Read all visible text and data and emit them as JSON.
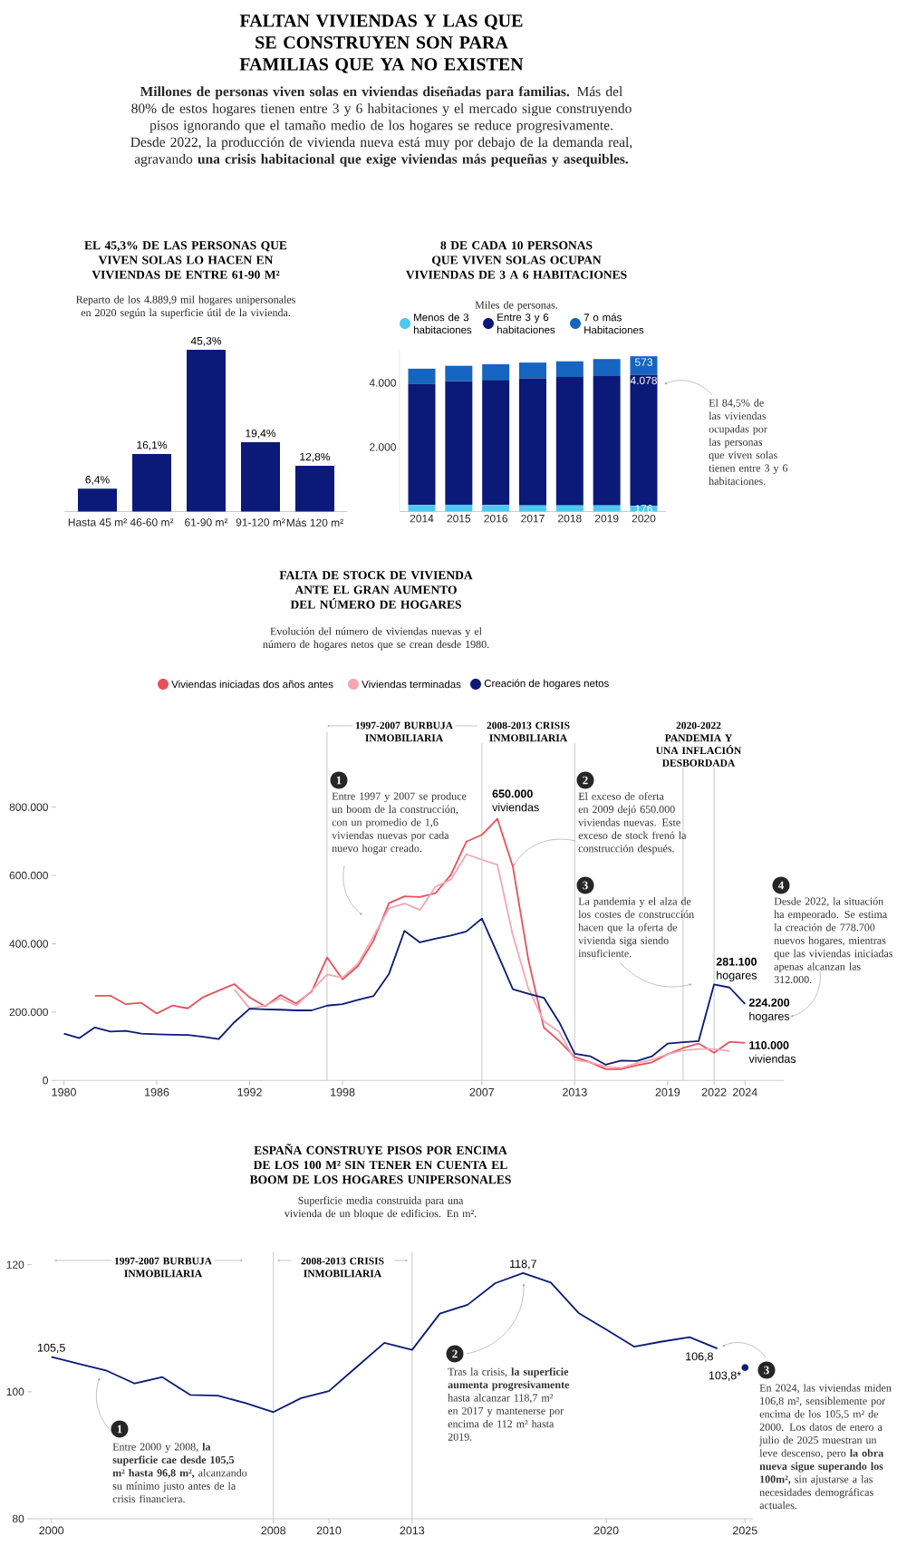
{
  "chart_data": [
    {
      "type": "other",
      "title": "FALTAN VIVIENDAS Y LAS QUE SE CONSTRUYEN SON PARA FAMILIAS QUE YA NO EXISTEN",
      "subtitle": "**Millones de personas viven solas en viviendas diseñadas para familias.** Más del 80% de estos hogares tienen entre 3 y 6 habitaciones y el mercado sigue construyendo pisos ignorando que el tamaño medio de los hogares se reduce progresivamente. Desde 2022, la producción de vivienda nueva está muy por debajo de la demanda real, agravando **una crisis habitacional que exige viviendas más pequeñas y asequibles.**"
    },
    {
      "type": "bar",
      "title": "EL 45,3% DE LAS PERSONAS QUE VIVEN SOLAS LO HACEN EN VIVIENDAS DE ENTRE 61-90 M²",
      "subtitle": "Reparto de los 4.889,9 mil hogares unipersonales en 2020 según la superficie útil de la vivienda.",
      "categories": [
        "Hasta 45 m²",
        "46-60 m²",
        "61-90 m²",
        "91-120 m²",
        "Más 120 m²"
      ],
      "values": [
        6.4,
        16.1,
        45.3,
        19.4,
        12.8
      ],
      "value_labels": [
        "6,4%",
        "16,1%",
        "45,3%",
        "19,4%",
        "12,8%"
      ],
      "color": "#0b1a78"
    },
    {
      "type": "bar",
      "stacked": true,
      "title": "8 DE CADA 10 PERSONAS QUE VIVEN SOLAS OCUPAN VIVIENDAS DE 3 A 6 HABITACIONES",
      "subtitle": "Miles de personas.",
      "categories": [
        "2014",
        "2015",
        "2016",
        "2017",
        "2018",
        "2019",
        "2020"
      ],
      "series": [
        {
          "name": "Menos de 3 habitaciones",
          "color": "#4dc8f0",
          "values": [
            200,
            210,
            200,
            190,
            190,
            190,
            176
          ],
          "value_labels": [
            null,
            null,
            null,
            null,
            null,
            null,
            "176"
          ]
        },
        {
          "name": "Entre 3 y 6 habitaciones",
          "color": "#0b1a78",
          "values": [
            3770,
            3840,
            3890,
            3950,
            3990,
            4020,
            4078
          ],
          "value_labels": [
            null,
            null,
            null,
            null,
            null,
            null,
            "4.078"
          ]
        },
        {
          "name": "7 o más Habitaciones",
          "color": "#1565c0",
          "values": [
            470,
            480,
            490,
            490,
            490,
            530,
            573
          ],
          "value_labels": [
            null,
            null,
            null,
            null,
            null,
            null,
            "573"
          ]
        }
      ],
      "ylim": [
        0,
        5000
      ],
      "yticks": [
        {
          "value": 2000,
          "label": "2.000"
        },
        {
          "value": 4000,
          "label": "4.000"
        }
      ],
      "legend": "top left",
      "annotations": [
        "El 84,5% de las viviendas ocupadas por las personas que viven solas tienen entre 3 y 6 habitaciones."
      ]
    },
    {
      "type": "line",
      "title": "FALTA DE STOCK DE VIVIENDA ANTE EL GRAN AUMENTO DEL NÚMERO DE HOGARES",
      "subtitle": "Evolución del número de viviendas nuevas y el número de hogares netos que se crean desde 1980.",
      "series": [
        {
          "name": "Viviendas iniciadas dos años antes",
          "color": "#e8505b",
          "x": [
            1982,
            1983,
            1984,
            1985,
            1986,
            1987,
            1988,
            1989,
            1990,
            1991,
            1992,
            1993,
            1994,
            1995,
            1996,
            1997,
            1998,
            1999,
            2000,
            2001,
            2002,
            2003,
            2004,
            2005,
            2006,
            2007,
            2008,
            2009,
            2010,
            2011,
            2012,
            2013,
            2014,
            2015,
            2016,
            2017,
            2018,
            2019,
            2020,
            2021,
            2022,
            2023,
            2024
          ],
          "values": [
            248000,
            248000,
            223000,
            227000,
            196000,
            219000,
            211000,
            244000,
            263000,
            282000,
            243000,
            217000,
            250000,
            225000,
            260000,
            360000,
            296000,
            335000,
            409000,
            519000,
            539000,
            537000,
            548000,
            602000,
            699000,
            719000,
            766000,
            626000,
            354000,
            155000,
            115000,
            69000,
            53000,
            33000,
            33000,
            44000,
            53000,
            77000,
            95000,
            108000,
            81000,
            113000,
            110000
          ]
        },
        {
          "name": "Viviendas terminadas",
          "color": "#f4a6b4",
          "x": [
            1991,
            1992,
            1993,
            1994,
            1995,
            1996,
            1997,
            1998,
            1999,
            2000,
            2001,
            2002,
            2003,
            2004,
            2005,
            2006,
            2007,
            2008,
            2009,
            2010,
            2011,
            2012,
            2013,
            2014,
            2015,
            2016,
            2017,
            2018,
            2019,
            2020,
            2021,
            2022,
            2023
          ],
          "values": [
            267000,
            210000,
            219000,
            241000,
            219000,
            263000,
            310000,
            301000,
            342000,
            422000,
            504000,
            518000,
            499000,
            567000,
            588000,
            662000,
            646000,
            631000,
            425000,
            270000,
            173000,
            142000,
            60000,
            53000,
            40000,
            37000,
            50000,
            61000,
            77000,
            88000,
            92000,
            92000,
            86000
          ]
        },
        {
          "name": "Creación de hogares netos",
          "color": "#0b1a78",
          "x": [
            1980,
            1981,
            1982,
            1983,
            1984,
            1985,
            1986,
            1987,
            1988,
            1989,
            1990,
            1991,
            1992,
            1993,
            1994,
            1995,
            1996,
            1997,
            1998,
            1999,
            2000,
            2001,
            2002,
            2003,
            2004,
            2005,
            2006,
            2007,
            2008,
            2009,
            2010,
            2011,
            2012,
            2013,
            2014,
            2015,
            2016,
            2017,
            2018,
            2019,
            2020,
            2021,
            2022,
            2023,
            2024
          ],
          "values": [
            137000,
            124000,
            155000,
            143000,
            145000,
            137000,
            135000,
            134000,
            133000,
            128000,
            121000,
            170000,
            210000,
            208000,
            207000,
            205000,
            205000,
            219000,
            223000,
            236000,
            247000,
            312000,
            438000,
            404000,
            415000,
            424000,
            436000,
            474000,
            372000,
            267000,
            254000,
            242000,
            170000,
            78000,
            71000,
            46000,
            58000,
            57000,
            71000,
            108000,
            112000,
            115000,
            281100,
            272000,
            224200
          ]
        }
      ],
      "xlim": [
        1979.5,
        2026.5
      ],
      "xticks": [
        1980,
        1986,
        1992,
        1998,
        2007,
        2013,
        2019,
        2022,
        2024
      ],
      "ylim": [
        0,
        1020000
      ],
      "yticks": [
        0,
        {
          "value": 200000,
          "label": "200.000"
        },
        {
          "value": 400000,
          "label": "400.000"
        },
        {
          "value": 600000,
          "label": "600.000"
        },
        {
          "value": 800000,
          "label": "800.000"
        }
      ],
      "legend": "top",
      "ref_lines": [
        {
          "axis": "x",
          "value": 1997
        },
        {
          "axis": "x",
          "value": 2007
        },
        {
          "axis": "x",
          "value": 2013
        },
        {
          "axis": "x",
          "value": 2020
        },
        {
          "axis": "x",
          "value": 2022
        }
      ],
      "annotations": [
        "1",
        "Entre 1997 y 2007 se produce un boom de la construcción, con un promedio de 1,6 viviendas nuevas por cada nuevo hogar creado.",
        "2",
        {
          "text": "El exceso de oferta en 2009 dejó 650.000 viviendas nuevas. Este exceso de stock frenó la construcción después.",
          "x": 2009,
          "y": 626000
        },
        "3",
        "La pandemia y el alza de los costes de construcción hacen que la oferta de vivienda siga siendo insuficiente.",
        "4",
        "Desde 2022, la situación ha empeorado. Se estima la creación de 778.700 nuevos hogares, mientras que las viviendas iniciadas apenas alcanzan las 312.000.",
        {
          "text": "**650.000** viviendas",
          "x": 2008,
          "y": 766000
        },
        {
          "text": "**281.100** hogares",
          "x": 2022,
          "y": 281100
        },
        {
          "text": "**224.200** hogares",
          "x": 2024,
          "y": 224200
        },
        {
          "text": "**110.000** viviendas",
          "x": 2024,
          "y": 110000
        },
        "1997-2007 BURBUJA INMOBILIARIA",
        "2008-2013 CRISIS INMOBILIARIA",
        "2020-2022 PANDEMIA Y UNA INFLACIÓN DESBORDADA"
      ]
    },
    {
      "type": "line",
      "title": "ESPAÑA CONSTRUYE PISOS POR ENCIMA DE LOS 100 M² SIN TENER EN CUENTA EL BOOM DE LOS HOGARES UNIPERSONALES",
      "subtitle": "Superficie media construida para una vivienda de un bloque de edificios. En m².",
      "series": [
        {
          "color": "#0b1a78",
          "x": [
            2000,
            2001,
            2002,
            2003,
            2004,
            2005,
            2006,
            2007,
            2008,
            2009,
            2010,
            2011,
            2012,
            2013,
            2014,
            2015,
            2016,
            2017,
            2018,
            2019,
            2020,
            2021,
            2022,
            2023,
            2024
          ],
          "values": [
            105.5,
            104.4,
            103.3,
            101.3,
            102.3,
            99.5,
            99.4,
            98.2,
            96.8,
            99.0,
            100.1,
            103.9,
            107.7,
            106.6,
            112.3,
            113.7,
            117.1,
            118.7,
            117.2,
            112.4,
            109.8,
            107.1,
            107.9,
            108.6,
            106.8
          ],
          "value_labels": [
            "105,5",
            null,
            null,
            null,
            null,
            null,
            null,
            null,
            null,
            null,
            null,
            null,
            null,
            null,
            null,
            null,
            null,
            "118,7",
            null,
            null,
            null,
            null,
            null,
            null,
            "106,8"
          ]
        },
        {
          "type": "scatter",
          "color": "#0b1a78",
          "x": [
            2025
          ],
          "values": [
            103.8
          ],
          "value_labels": [
            "103,8*"
          ]
        }
      ],
      "xlim": [
        1999.3,
        2025.3
      ],
      "xticks": [
        2000,
        2008,
        2010,
        2013,
        2020,
        2025
      ],
      "ylim": [
        80,
        122
      ],
      "yticks": [
        80,
        100,
        120
      ],
      "ref_lines": [
        {
          "axis": "x",
          "value": 2008
        },
        {
          "axis": "x",
          "value": 2013
        }
      ],
      "annotations": [
        "1",
        "Entre 2000 y 2008, **la superficie cae desde 105,5 m² hasta 96,8 m²,** alcanzando su mínimo justo antes de la crisis financiera.",
        "2",
        "Tras la crisis, **la superficie aumenta progresivamente** hasta alcanzar 118,7 m² en 2017 y mantenerse por encima de 112 m² hasta 2019.",
        "3",
        "En 2024, las viviendas miden 106,8 m², sensiblemente por encima de los 105,5 m² de 2000. Los datos de enero a julio de 2025 muestran un leve descenso, pero **la obra nueva sigue superando los 100m²,** sin ajustarse a las necesidades demográficas actuales.",
        "1997-2007 BURBUJA INMOBILIARIA",
        "2008-2013 CRISIS INMOBILIARIA"
      ]
    }
  ]
}
